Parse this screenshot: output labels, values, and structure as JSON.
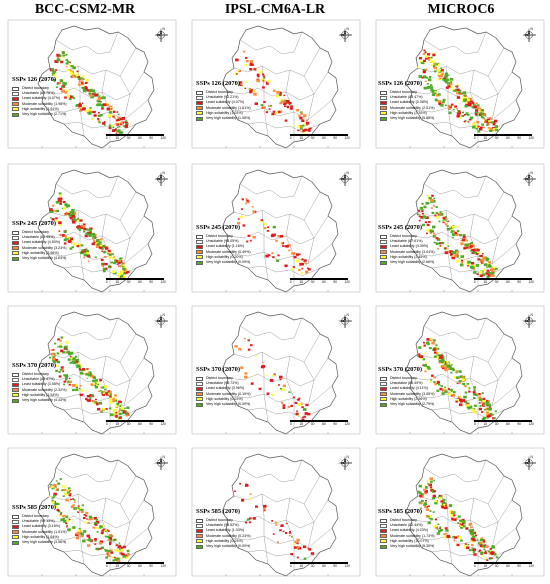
{
  "headers": [
    "BCC-CSM2-MR",
    "IPSL-CM6A-LR",
    "MICROC6"
  ],
  "colors": {
    "unsuitable": "#ffffff",
    "least": "#e31a1c",
    "moderate": "#fd8d3c",
    "high": "#ffff33",
    "very_high": "#4dac26"
  },
  "scale_numbers": [
    "0",
    "15",
    "30",
    "60",
    "90",
    "120"
  ],
  "compass_label": "N",
  "rows": [
    {
      "title": "SSPs 126 (2070)",
      "panels": [
        {
          "model": "BCC-CSM2-MR",
          "boundary": "District boundary",
          "items": [
            {
              "k": "unsuitable",
              "label": "Unsuitable (86.76%)"
            },
            {
              "k": "least",
              "label": "Least suitability (4.07%)"
            },
            {
              "k": "moderate",
              "label": "Moderate suitability (1.98%)"
            },
            {
              "k": "high",
              "label": "High suitability (1.51%)"
            },
            {
              "k": "very_high",
              "label": "Very high suitability (2.71%)"
            }
          ]
        },
        {
          "model": "IPSL-CM6A-LR",
          "boundary": "District boundary",
          "items": [
            {
              "k": "unsuitable",
              "label": "Unsuitable (92.21%)"
            },
            {
              "k": "least",
              "label": "Least suitability (4.07%)"
            },
            {
              "k": "moderate",
              "label": "Moderate suitability (1.61%)"
            },
            {
              "k": "high",
              "label": "High suitability (1.03%)"
            },
            {
              "k": "very_high",
              "label": "Very high suitability (1.08%)"
            }
          ]
        },
        {
          "model": "MICROC6",
          "boundary": "District boundary",
          "items": [
            {
              "k": "unsuitable",
              "label": "Unsuitable (85.47%)"
            },
            {
              "k": "least",
              "label": "Least suitability (3.38%)"
            },
            {
              "k": "moderate",
              "label": "Moderate suitability (2.51%)"
            },
            {
              "k": "high",
              "label": "High suitability (2.76%)"
            },
            {
              "k": "very_high",
              "label": "Very high suitability (5.88%)"
            }
          ]
        }
      ]
    },
    {
      "title": "SSPs 245 (2070)",
      "panels": [
        {
          "model": "BCC-CSM2-MR",
          "boundary": "District boundary",
          "items": [
            {
              "k": "unsuitable",
              "label": "Unsuitable (84.95%)"
            },
            {
              "k": "least",
              "label": "Least suitability (4.53%)"
            },
            {
              "k": "moderate",
              "label": "Moderate suitability (3.23%)"
            },
            {
              "k": "high",
              "label": "High suitability (3.56%)"
            },
            {
              "k": "very_high",
              "label": "Very high suitability (4.63%)"
            }
          ]
        },
        {
          "model": "IPSL-CM6A-LR",
          "boundary": "District boundary",
          "items": [
            {
              "k": "unsuitable",
              "label": "Unsuitable (98.05%)"
            },
            {
              "k": "least",
              "label": "Least suitability (1.16%)"
            },
            {
              "k": "moderate",
              "label": "Moderate suitability (0.49%)"
            },
            {
              "k": "high",
              "label": "High suitability (0.20%)"
            },
            {
              "k": "very_high",
              "label": "Very high suitability (0.09%)"
            }
          ]
        },
        {
          "model": "MICROC6",
          "boundary": "District boundary",
          "items": [
            {
              "k": "unsuitable",
              "label": "Unsuitable (87.61%)"
            },
            {
              "k": "least",
              "label": "Least suitability (4.39%)"
            },
            {
              "k": "moderate",
              "label": "Moderate suitability (3.04%)"
            },
            {
              "k": "high",
              "label": "High suitability (2.45%)"
            },
            {
              "k": "very_high",
              "label": "Very high suitability (2.66%)"
            }
          ]
        }
      ]
    },
    {
      "title": "SSPs 370 (2070)",
      "panels": [
        {
          "model": "BCC-CSM2-MR",
          "boundary": "District boundary",
          "items": [
            {
              "k": "unsuitable",
              "label": "Unsuitable (88.47%)"
            },
            {
              "k": "least",
              "label": "Least suitability (3.55%)"
            },
            {
              "k": "moderate",
              "label": "Moderate suitability (2.32%)"
            },
            {
              "k": "high",
              "label": "High suitability (1.54%)"
            },
            {
              "k": "very_high",
              "label": "Very high suitability (4.43%)"
            }
          ]
        },
        {
          "model": "IPSL-CM6A-LR",
          "boundary": "District boundary",
          "items": [
            {
              "k": "unsuitable",
              "label": "Unsuitable (98.73%)"
            },
            {
              "k": "least",
              "label": "Least suitability (0.96%)"
            },
            {
              "k": "moderate",
              "label": "Moderate suitability (0.19%)"
            },
            {
              "k": "high",
              "label": "High suitability (0.03%)"
            },
            {
              "k": "very_high",
              "label": "Very high suitability (0.09%)"
            }
          ]
        },
        {
          "model": "MICROC6",
          "boundary": "District boundary",
          "items": [
            {
              "k": "unsuitable",
              "label": "Unsuitable (86.49%)"
            },
            {
              "k": "least",
              "label": "Least suitability (4.11%)"
            },
            {
              "k": "moderate",
              "label": "Moderate suitability (3.55%)"
            },
            {
              "k": "high",
              "label": "High suitability (2.96%)"
            },
            {
              "k": "very_high",
              "label": "Very high suitability (2.79%)"
            }
          ]
        }
      ]
    },
    {
      "title": "SSPs 585 (2070)",
      "panels": [
        {
          "model": "BCC-CSM2-MR",
          "boundary": "District boundary",
          "items": [
            {
              "k": "unsuitable",
              "label": "Unsuitable (90.13%)"
            },
            {
              "k": "least",
              "label": "Least suitability (3.16%)"
            },
            {
              "k": "moderate",
              "label": "Moderate suitability (1.51%)"
            },
            {
              "k": "high",
              "label": "High suitability (1.64%)"
            },
            {
              "k": "very_high",
              "label": "Very high suitability (3.56%)"
            }
          ]
        },
        {
          "model": "IPSL-CM6A-LR",
          "boundary": "District boundary",
          "items": [
            {
              "k": "unsuitable",
              "label": "Unsuitable (98.52%)"
            },
            {
              "k": "least",
              "label": "Least suitability (1.03%)"
            },
            {
              "k": "moderate",
              "label": "Moderate suitability (0.23%)"
            },
            {
              "k": "high",
              "label": "High suitability (0.03%)"
            },
            {
              "k": "very_high",
              "label": "Very high suitability (0.09%)"
            }
          ]
        },
        {
          "model": "MICROC6",
          "boundary": "District boundary",
          "items": [
            {
              "k": "unsuitable",
              "label": "Unsuitable (82.44%)"
            },
            {
              "k": "least",
              "label": "Least suitability (4.23%)"
            },
            {
              "k": "moderate",
              "label": "Moderate suitability (1.73%)"
            },
            {
              "k": "high",
              "label": "High suitability (10.07%)"
            },
            {
              "k": "very_high",
              "label": "Very high suitability (5.39%)"
            }
          ]
        }
      ]
    }
  ]
}
